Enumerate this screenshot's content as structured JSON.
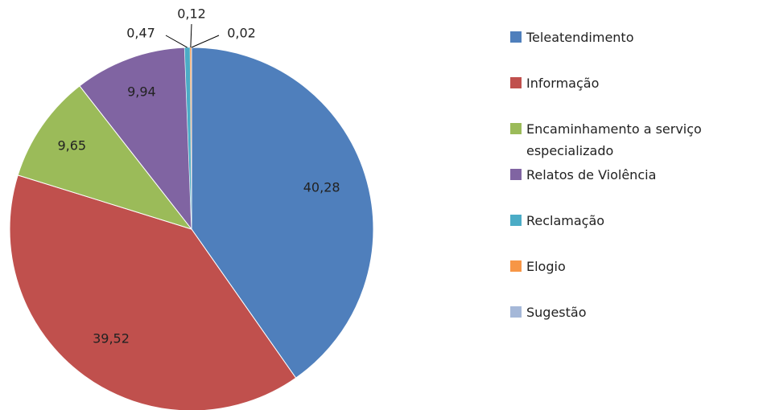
{
  "chart_data": {
    "type": "pie",
    "categories": [
      "Teleatendimento",
      "Informação",
      "Encaminhamento a serviço especializado",
      "Relatos de Violência",
      "Reclamação",
      "Elogio",
      "Sugestão"
    ],
    "values": [
      40.28,
      39.52,
      9.65,
      9.94,
      0.47,
      0.12,
      0.02
    ],
    "value_labels": [
      "40,28",
      "39,52",
      "9,65",
      "9,94",
      "0,47",
      "0,12",
      "0,02"
    ],
    "colors": [
      "#4f7fbc",
      "#c0504d",
      "#9bbb59",
      "#8064a2",
      "#4bacc6",
      "#f79646",
      "#a5b8d8"
    ],
    "legend": "right"
  }
}
